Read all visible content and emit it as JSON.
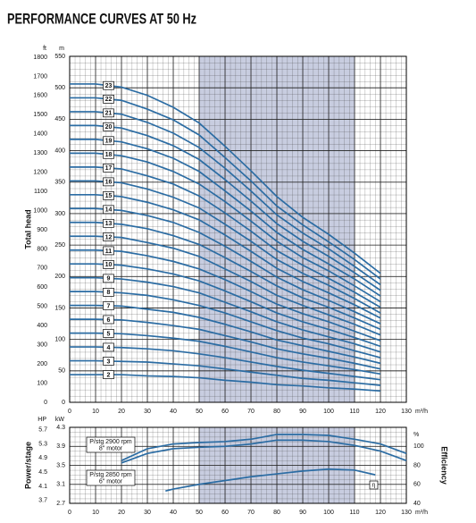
{
  "title": "PERFORMANCE CURVES AT 50 Hz",
  "chart_data": [
    {
      "type": "line",
      "x_label": "m³/h",
      "y_label": "Total head",
      "y_unit": "m",
      "y2_unit": "ft",
      "xlim": [
        0,
        130
      ],
      "xticks": [
        0,
        10,
        20,
        30,
        40,
        50,
        60,
        70,
        80,
        90,
        100,
        110,
        120,
        130
      ],
      "ylim": [
        0,
        550
      ],
      "yticks": [
        0,
        50,
        100,
        150,
        200,
        250,
        300,
        350,
        400,
        450,
        500,
        550
      ],
      "y2lim": [
        0,
        1804.5
      ],
      "y2ticks": [
        0,
        100,
        200,
        300,
        400,
        500,
        600,
        700,
        800,
        900,
        1000,
        1100,
        1200,
        1300,
        1400,
        1500,
        1600,
        1700,
        1800
      ],
      "shaded_range": [
        50,
        110
      ],
      "grid": true,
      "color": "#2b6ca3",
      "x": [
        0,
        10,
        20,
        30,
        40,
        50,
        60,
        70,
        80,
        90,
        100,
        110,
        120
      ],
      "series": [
        {
          "name": "2",
          "values": [
            44,
            44,
            44,
            42,
            41,
            39,
            35,
            32,
            28,
            26,
            23,
            21,
            18
          ]
        },
        {
          "name": "3",
          "values": [
            66,
            66,
            65,
            64,
            61,
            58,
            53,
            48,
            43,
            38,
            35,
            31,
            27
          ]
        },
        {
          "name": "4",
          "values": [
            88,
            88,
            87,
            85,
            82,
            77,
            71,
            64,
            57,
            51,
            46,
            41,
            36
          ]
        },
        {
          "name": "5",
          "values": [
            110,
            110,
            109,
            106,
            102,
            97,
            89,
            80,
            71,
            64,
            58,
            52,
            45
          ]
        },
        {
          "name": "6",
          "values": [
            132,
            132,
            131,
            127,
            122,
            116,
            106,
            96,
            85,
            77,
            70,
            62,
            53
          ]
        },
        {
          "name": "7",
          "values": [
            154,
            154,
            153,
            148,
            143,
            135,
            124,
            112,
            99,
            90,
            81,
            72,
            62
          ]
        },
        {
          "name": "8",
          "values": [
            176,
            176,
            174,
            170,
            163,
            154,
            142,
            128,
            114,
            102,
            93,
            82,
            71
          ]
        },
        {
          "name": "9",
          "values": [
            198,
            198,
            196,
            191,
            184,
            174,
            159,
            144,
            128,
            115,
            104,
            93,
            80
          ]
        },
        {
          "name": "10",
          "values": [
            220,
            220,
            218,
            212,
            204,
            193,
            177,
            160,
            142,
            128,
            116,
            103,
            89
          ]
        },
        {
          "name": "11",
          "values": [
            242,
            242,
            240,
            233,
            224,
            212,
            195,
            176,
            156,
            141,
            128,
            113,
            98
          ]
        },
        {
          "name": "12",
          "values": [
            264,
            264,
            262,
            254,
            245,
            232,
            212,
            192,
            170,
            154,
            139,
            124,
            107
          ]
        },
        {
          "name": "13",
          "values": [
            286,
            286,
            283,
            276,
            265,
            251,
            230,
            208,
            185,
            166,
            151,
            134,
            116
          ]
        },
        {
          "name": "14",
          "values": [
            308,
            308,
            305,
            297,
            286,
            270,
            248,
            224,
            199,
            179,
            162,
            144,
            125
          ]
        },
        {
          "name": "15",
          "values": [
            330,
            330,
            327,
            318,
            306,
            290,
            266,
            240,
            213,
            192,
            174,
            155,
            134
          ]
        },
        {
          "name": "16",
          "values": [
            352,
            352,
            349,
            339,
            326,
            309,
            283,
            256,
            227,
            205,
            186,
            165,
            142
          ]
        },
        {
          "name": "17",
          "values": [
            374,
            374,
            371,
            360,
            347,
            328,
            301,
            272,
            241,
            218,
            197,
            175,
            151
          ]
        },
        {
          "name": "18",
          "values": [
            396,
            396,
            392,
            382,
            367,
            347,
            319,
            288,
            256,
            230,
            209,
            185,
            160
          ]
        },
        {
          "name": "19",
          "values": [
            418,
            418,
            414,
            403,
            388,
            367,
            336,
            304,
            270,
            243,
            220,
            196,
            169
          ]
        },
        {
          "name": "20",
          "values": [
            440,
            440,
            436,
            424,
            408,
            386,
            354,
            320,
            284,
            256,
            232,
            206,
            178
          ]
        },
        {
          "name": "21",
          "values": [
            462,
            462,
            458,
            445,
            428,
            405,
            372,
            336,
            298,
            269,
            244,
            216,
            187
          ]
        },
        {
          "name": "22",
          "values": [
            484,
            484,
            480,
            466,
            449,
            425,
            389,
            352,
            312,
            282,
            255,
            227,
            196
          ]
        },
        {
          "name": "23",
          "values": [
            506,
            506,
            501,
            488,
            469,
            444,
            407,
            368,
            327,
            294,
            267,
            237,
            205
          ]
        }
      ]
    },
    {
      "type": "line",
      "x_label": "m³/h",
      "y_label": "Power/stage",
      "y_unit": "kW",
      "y_unit_hp": "HP",
      "y2_label": "Efficiency",
      "y2_unit": "%",
      "xlim": [
        0,
        130
      ],
      "xticks": [
        0,
        10,
        20,
        30,
        40,
        50,
        60,
        70,
        80,
        90,
        100,
        110,
        120,
        130
      ],
      "ylim": [
        2.7,
        4.3
      ],
      "yticks": [
        2.7,
        3.1,
        3.5,
        3.9,
        4.3
      ],
      "ylim_hp": [
        3.62,
        5.77
      ],
      "yticks_hp": [
        3.7,
        4.1,
        4.5,
        4.9,
        5.3,
        5.7
      ],
      "y2lim": [
        40,
        120
      ],
      "y2ticks": [
        40,
        60,
        80,
        100
      ],
      "shaded_range": [
        50,
        110
      ],
      "grid": true,
      "color": "#2b6ca3",
      "series": [
        {
          "name": "P/stg 2900 rpm",
          "motor": "8\" motor",
          "x": [
            20,
            30,
            40,
            50,
            60,
            70,
            80,
            90,
            100,
            110,
            120,
            130
          ],
          "values": [
            3.6,
            3.85,
            3.95,
            3.98,
            4.0,
            4.05,
            4.15,
            4.15,
            4.13,
            4.05,
            3.95,
            3.75
          ]
        },
        {
          "name": "P/stg 2850 rpm",
          "motor": "6\" motor",
          "x": [
            20,
            30,
            40,
            50,
            60,
            70,
            80,
            90,
            100,
            110,
            120,
            130
          ],
          "values": [
            3.55,
            3.75,
            3.85,
            3.88,
            3.9,
            3.95,
            4.03,
            4.03,
            4.0,
            3.92,
            3.8,
            3.6
          ]
        },
        {
          "name": "η",
          "axis": "y2",
          "x": [
            37,
            40,
            50,
            60,
            70,
            80,
            90,
            100,
            110,
            118
          ],
          "values": [
            53,
            55,
            60,
            64,
            68,
            71,
            74,
            76,
            75,
            70
          ]
        }
      ]
    }
  ]
}
